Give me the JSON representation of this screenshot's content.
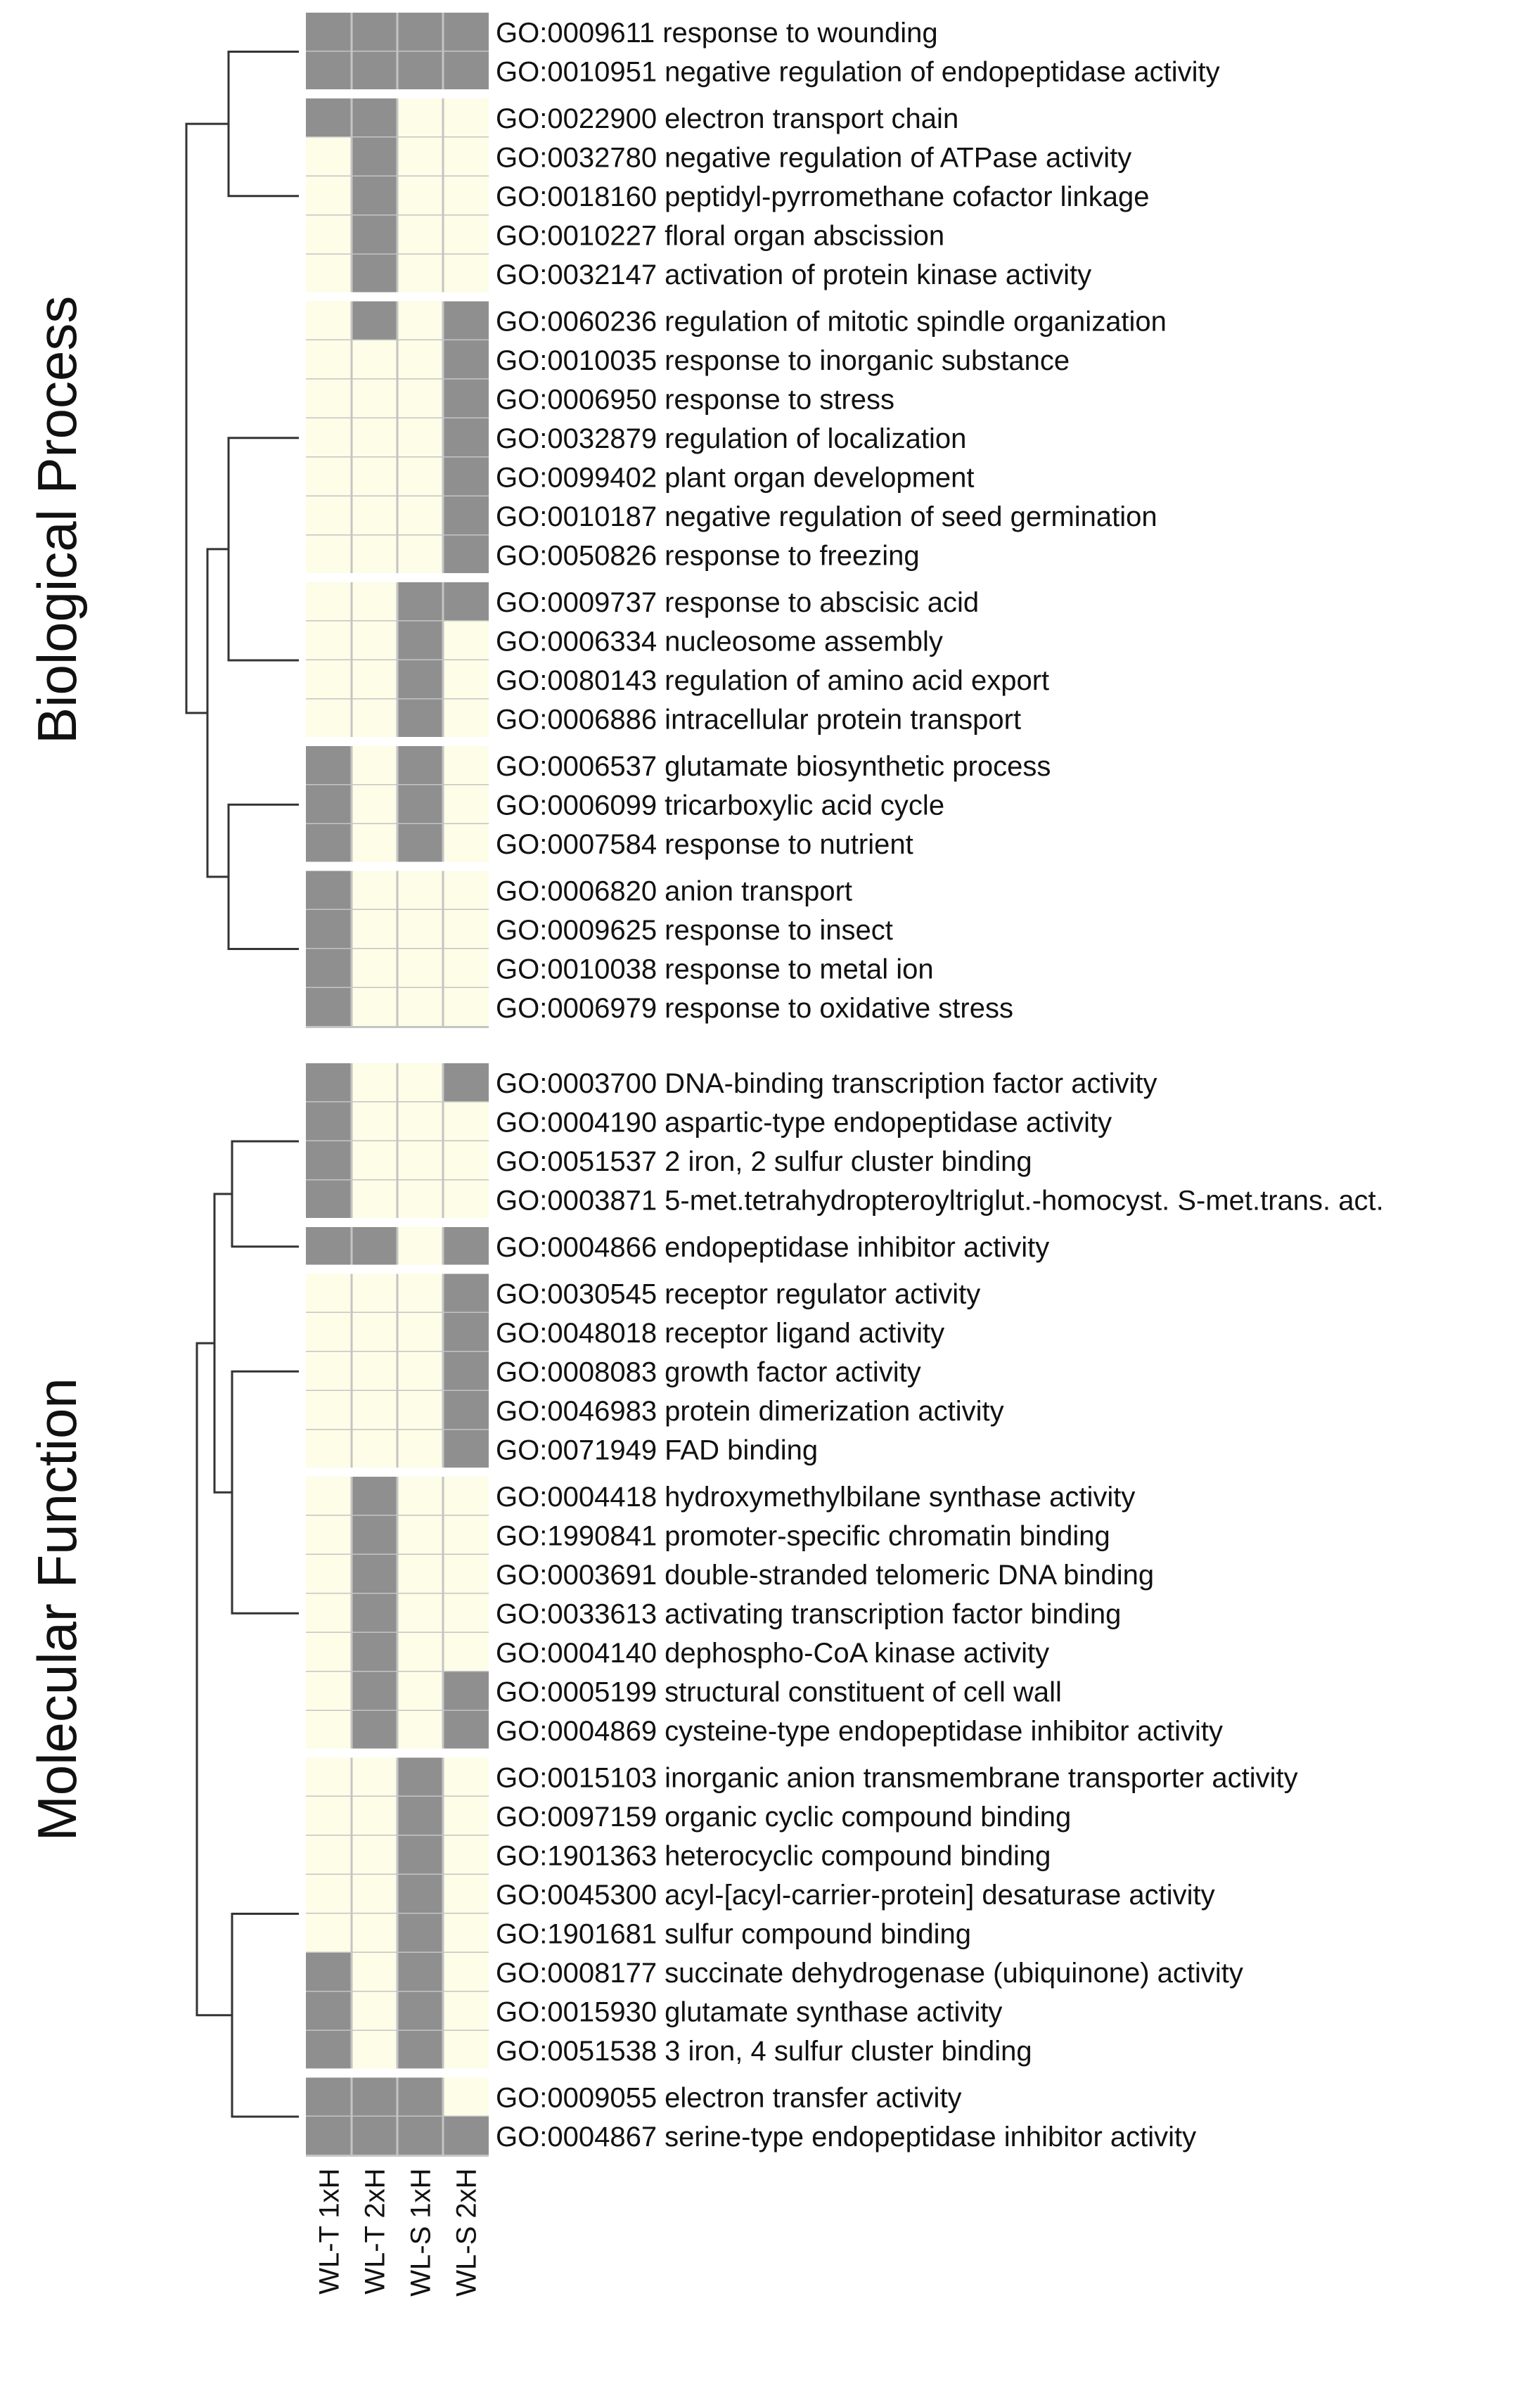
{
  "chart_data": {
    "type": "heatmap",
    "title": "",
    "legend": "none",
    "colors": {
      "present": "#8f8f8f",
      "absent": "#fdfde8",
      "dendrogram": "#333333"
    },
    "columns": [
      "WL-T 1xH",
      "WL-T 2xH",
      "WL-S 1xH",
      "WL-S 2xH"
    ],
    "panels": [
      {
        "title": "Biological Process",
        "clusters": [
          {
            "rows": [
              {
                "label": "GO:0009611 response to wounding",
                "values": [
                  1,
                  1,
                  1,
                  1
                ]
              },
              {
                "label": "GO:0010951 negative regulation of endopeptidase activity",
                "values": [
                  1,
                  1,
                  1,
                  1
                ]
              }
            ]
          },
          {
            "rows": [
              {
                "label": "GO:0022900 electron transport chain",
                "values": [
                  1,
                  1,
                  0,
                  0
                ]
              },
              {
                "label": "GO:0032780 negative regulation of ATPase activity",
                "values": [
                  0,
                  1,
                  0,
                  0
                ]
              },
              {
                "label": "GO:0018160 peptidyl-pyrromethane cofactor linkage",
                "values": [
                  0,
                  1,
                  0,
                  0
                ]
              },
              {
                "label": "GO:0010227 floral organ abscission",
                "values": [
                  0,
                  1,
                  0,
                  0
                ]
              },
              {
                "label": "GO:0032147 activation of protein kinase activity",
                "values": [
                  0,
                  1,
                  0,
                  0
                ]
              }
            ]
          },
          {
            "rows": [
              {
                "label": "GO:0060236 regulation of mitotic spindle organization",
                "values": [
                  0,
                  1,
                  0,
                  1
                ]
              },
              {
                "label": "GO:0010035 response to inorganic substance",
                "values": [
                  0,
                  0,
                  0,
                  1
                ]
              },
              {
                "label": "GO:0006950 response to stress",
                "values": [
                  0,
                  0,
                  0,
                  1
                ]
              },
              {
                "label": "GO:0032879 regulation of localization",
                "values": [
                  0,
                  0,
                  0,
                  1
                ]
              },
              {
                "label": "GO:0099402 plant organ development",
                "values": [
                  0,
                  0,
                  0,
                  1
                ]
              },
              {
                "label": "GO:0010187 negative regulation of seed germination",
                "values": [
                  0,
                  0,
                  0,
                  1
                ]
              },
              {
                "label": "GO:0050826 response to freezing",
                "values": [
                  0,
                  0,
                  0,
                  1
                ]
              }
            ]
          },
          {
            "rows": [
              {
                "label": "GO:0009737 response to abscisic acid",
                "values": [
                  0,
                  0,
                  1,
                  1
                ]
              },
              {
                "label": "GO:0006334 nucleosome assembly",
                "values": [
                  0,
                  0,
                  1,
                  0
                ]
              },
              {
                "label": "GO:0080143 regulation of amino acid export",
                "values": [
                  0,
                  0,
                  1,
                  0
                ]
              },
              {
                "label": "GO:0006886 intracellular protein transport",
                "values": [
                  0,
                  0,
                  1,
                  0
                ]
              }
            ]
          },
          {
            "rows": [
              {
                "label": "GO:0006537 glutamate biosynthetic process",
                "values": [
                  1,
                  0,
                  1,
                  0
                ]
              },
              {
                "label": "GO:0006099 tricarboxylic acid cycle",
                "values": [
                  1,
                  0,
                  1,
                  0
                ]
              },
              {
                "label": "GO:0007584 response to nutrient",
                "values": [
                  1,
                  0,
                  1,
                  0
                ]
              }
            ]
          },
          {
            "rows": [
              {
                "label": "GO:0006820 anion transport",
                "values": [
                  1,
                  0,
                  0,
                  0
                ]
              },
              {
                "label": "GO:0009625 response to insect",
                "values": [
                  1,
                  0,
                  0,
                  0
                ]
              },
              {
                "label": "GO:0010038 response to metal ion",
                "values": [
                  1,
                  0,
                  0,
                  0
                ]
              },
              {
                "label": "GO:0006979 response to oxidative stress",
                "values": [
                  1,
                  0,
                  0,
                  0
                ]
              }
            ]
          }
        ]
      },
      {
        "title": "Molecular Function",
        "clusters": [
          {
            "rows": [
              {
                "label": "GO:0003700 DNA-binding transcription factor activity",
                "values": [
                  1,
                  0,
                  0,
                  1
                ]
              },
              {
                "label": "GO:0004190 aspartic-type endopeptidase activity",
                "values": [
                  1,
                  0,
                  0,
                  0
                ]
              },
              {
                "label": "GO:0051537 2 iron, 2 sulfur cluster binding",
                "values": [
                  1,
                  0,
                  0,
                  0
                ]
              },
              {
                "label": "GO:0003871 5-met.tetrahydropteroyltriglut.-homocyst. S-met.trans. act.",
                "values": [
                  1,
                  0,
                  0,
                  0
                ]
              }
            ]
          },
          {
            "rows": [
              {
                "label": "GO:0004866 endopeptidase inhibitor activity",
                "values": [
                  1,
                  1,
                  0,
                  1
                ]
              }
            ]
          },
          {
            "rows": [
              {
                "label": "GO:0030545 receptor regulator activity",
                "values": [
                  0,
                  0,
                  0,
                  1
                ]
              },
              {
                "label": "GO:0048018 receptor ligand activity",
                "values": [
                  0,
                  0,
                  0,
                  1
                ]
              },
              {
                "label": "GO:0008083 growth factor activity",
                "values": [
                  0,
                  0,
                  0,
                  1
                ]
              },
              {
                "label": "GO:0046983 protein dimerization activity",
                "values": [
                  0,
                  0,
                  0,
                  1
                ]
              },
              {
                "label": "GO:0071949 FAD binding",
                "values": [
                  0,
                  0,
                  0,
                  1
                ]
              }
            ]
          },
          {
            "rows": [
              {
                "label": "GO:0004418 hydroxymethylbilane synthase activity",
                "values": [
                  0,
                  1,
                  0,
                  0
                ]
              },
              {
                "label": "GO:1990841 promoter-specific chromatin binding",
                "values": [
                  0,
                  1,
                  0,
                  0
                ]
              },
              {
                "label": "GO:0003691 double-stranded telomeric DNA binding",
                "values": [
                  0,
                  1,
                  0,
                  0
                ]
              },
              {
                "label": "GO:0033613 activating transcription factor binding",
                "values": [
                  0,
                  1,
                  0,
                  0
                ]
              },
              {
                "label": "GO:0004140 dephospho-CoA kinase activity",
                "values": [
                  0,
                  1,
                  0,
                  0
                ]
              },
              {
                "label": "GO:0005199 structural constituent of cell wall",
                "values": [
                  0,
                  1,
                  0,
                  1
                ]
              },
              {
                "label": "GO:0004869 cysteine-type endopeptidase inhibitor activity",
                "values": [
                  0,
                  1,
                  0,
                  1
                ]
              }
            ]
          },
          {
            "rows": [
              {
                "label": "GO:0015103 inorganic anion transmembrane transporter activity",
                "values": [
                  0,
                  0,
                  1,
                  0
                ]
              },
              {
                "label": "GO:0097159 organic cyclic compound binding",
                "values": [
                  0,
                  0,
                  1,
                  0
                ]
              },
              {
                "label": "GO:1901363 heterocyclic compound binding",
                "values": [
                  0,
                  0,
                  1,
                  0
                ]
              },
              {
                "label": "GO:0045300 acyl-[acyl-carrier-protein] desaturase activity",
                "values": [
                  0,
                  0,
                  1,
                  0
                ]
              },
              {
                "label": "GO:1901681 sulfur compound binding",
                "values": [
                  0,
                  0,
                  1,
                  0
                ]
              },
              {
                "label": "GO:0008177 succinate dehydrogenase (ubiquinone) activity",
                "values": [
                  1,
                  0,
                  1,
                  0
                ]
              },
              {
                "label": "GO:0015930 glutamate synthase activity",
                "values": [
                  1,
                  0,
                  1,
                  0
                ]
              },
              {
                "label": "GO:0051538 3 iron, 4 sulfur cluster binding",
                "values": [
                  1,
                  0,
                  1,
                  0
                ]
              }
            ]
          },
          {
            "rows": [
              {
                "label": "GO:0009055 electron transfer activity",
                "values": [
                  1,
                  1,
                  1,
                  0
                ]
              },
              {
                "label": "GO:0004867 serine-type endopeptidase inhibitor activity",
                "values": [
                  1,
                  1,
                  1,
                  1
                ]
              }
            ]
          }
        ]
      }
    ]
  }
}
